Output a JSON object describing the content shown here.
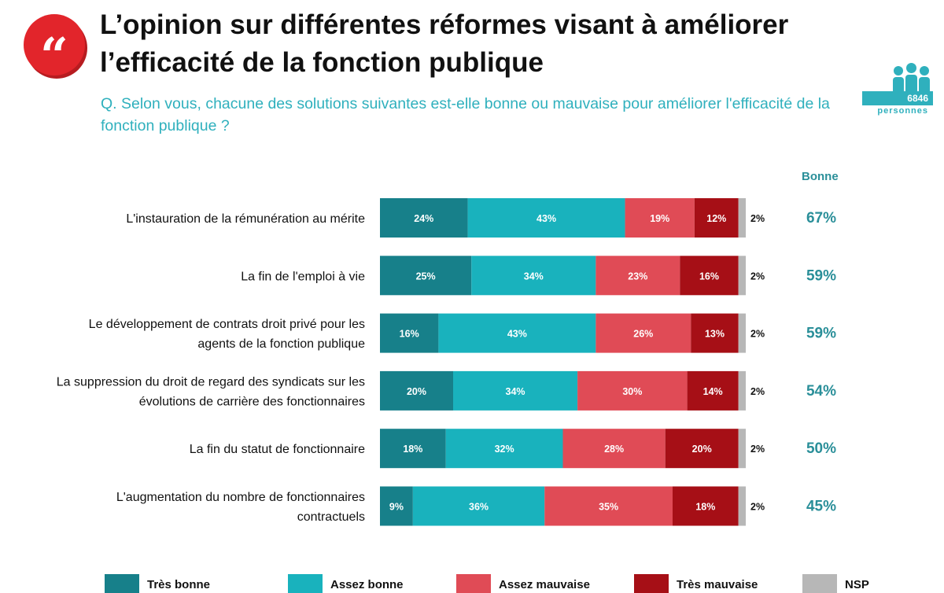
{
  "header": {
    "quote_glyph": "“",
    "title": "L’opinion sur différentes réformes visant à améliorer l’efficacité de la fonction publique",
    "question": "Q. Selon vous, chacune des solutions suivantes est-elle bonne ou mauvaise pour améliorer l'efficacité de la fonction publique ?"
  },
  "sample": {
    "count": "6846",
    "label": "personnes"
  },
  "colors": {
    "tres_bonne": "#17808a",
    "assez_bonne": "#19b2bd",
    "assez_mauvaise": "#e04b56",
    "tres_mauvaise": "#a60f16",
    "nsp": "#b7b7b7",
    "bonne_total": "#2a8f99"
  },
  "chart_data": {
    "type": "bar",
    "stacked": true,
    "orientation": "horizontal",
    "categories": [
      "L'instauration de la rémunération au mérite",
      "La fin de l'emploi à vie",
      "Le développement de contrats droit privé pour les agents de la fonction publique",
      "La suppression du droit de regard des syndicats sur les évolutions de carrière des fonctionnaires",
      "La fin du statut de fonctionnaire",
      "L'augmentation du nombre de fonctionnaires contractuels"
    ],
    "category_lines": [
      [
        "L'instauration de la rémunération au mérite"
      ],
      [
        "La fin de l'emploi à vie"
      ],
      [
        "Le développement de contrats droit privé pour les",
        "agents de la fonction publique"
      ],
      [
        "La suppression du droit de regard des syndicats sur les",
        "évolutions de carrière des fonctionnaires"
      ],
      [
        "La fin du statut de fonctionnaire"
      ],
      [
        "L'augmentation du nombre de fonctionnaires",
        "contractuels"
      ]
    ],
    "series": [
      {
        "name": "Très bonne",
        "color": "#17808a",
        "values": [
          24,
          25,
          16,
          20,
          18,
          9
        ]
      },
      {
        "name": "Assez bonne",
        "color": "#19b2bd",
        "values": [
          43,
          34,
          43,
          34,
          32,
          36
        ]
      },
      {
        "name": "Assez mauvaise",
        "color": "#e04b56",
        "values": [
          19,
          23,
          26,
          30,
          28,
          35
        ]
      },
      {
        "name": "Très mauvaise",
        "color": "#a60f16",
        "values": [
          12,
          16,
          13,
          14,
          20,
          18
        ]
      },
      {
        "name": "NSP",
        "color": "#b7b7b7",
        "values": [
          2,
          2,
          2,
          2,
          2,
          2
        ]
      }
    ],
    "value_suffix": "%",
    "bonne_header": "Bonne",
    "bonne_totals": [
      "67%",
      "59%",
      "59%",
      "54%",
      "50%",
      "45%"
    ],
    "xlim": [
      0,
      100
    ]
  }
}
